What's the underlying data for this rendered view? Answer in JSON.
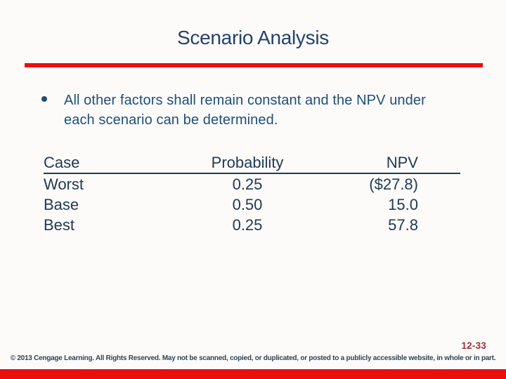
{
  "slide": {
    "title": "Scenario Analysis",
    "bullet": "All other factors shall remain constant and the NPV under each scenario can be determined.",
    "table": {
      "headers": [
        "Case",
        "Probability",
        "NPV"
      ],
      "rows": [
        [
          "Worst",
          "0.25",
          "($27.8)"
        ],
        [
          "Base",
          "0.50",
          "15.0"
        ],
        [
          "Best",
          "0.25",
          "57.8"
        ]
      ]
    },
    "page_number": "12-33",
    "copyright": "© 2013 Cengage Learning. All Rights Reserved. May not be scanned, copied, or duplicated, or posted to a publicly accessible website, in whole or in part.",
    "colors": {
      "title_navy": "#24426b",
      "body_blue": "#1f4e7a",
      "table_navy": "#203a54",
      "accent_red": "#ec0d0d",
      "page_number_maroon": "#9b3237",
      "copyright_slate": "#2f4457"
    }
  }
}
